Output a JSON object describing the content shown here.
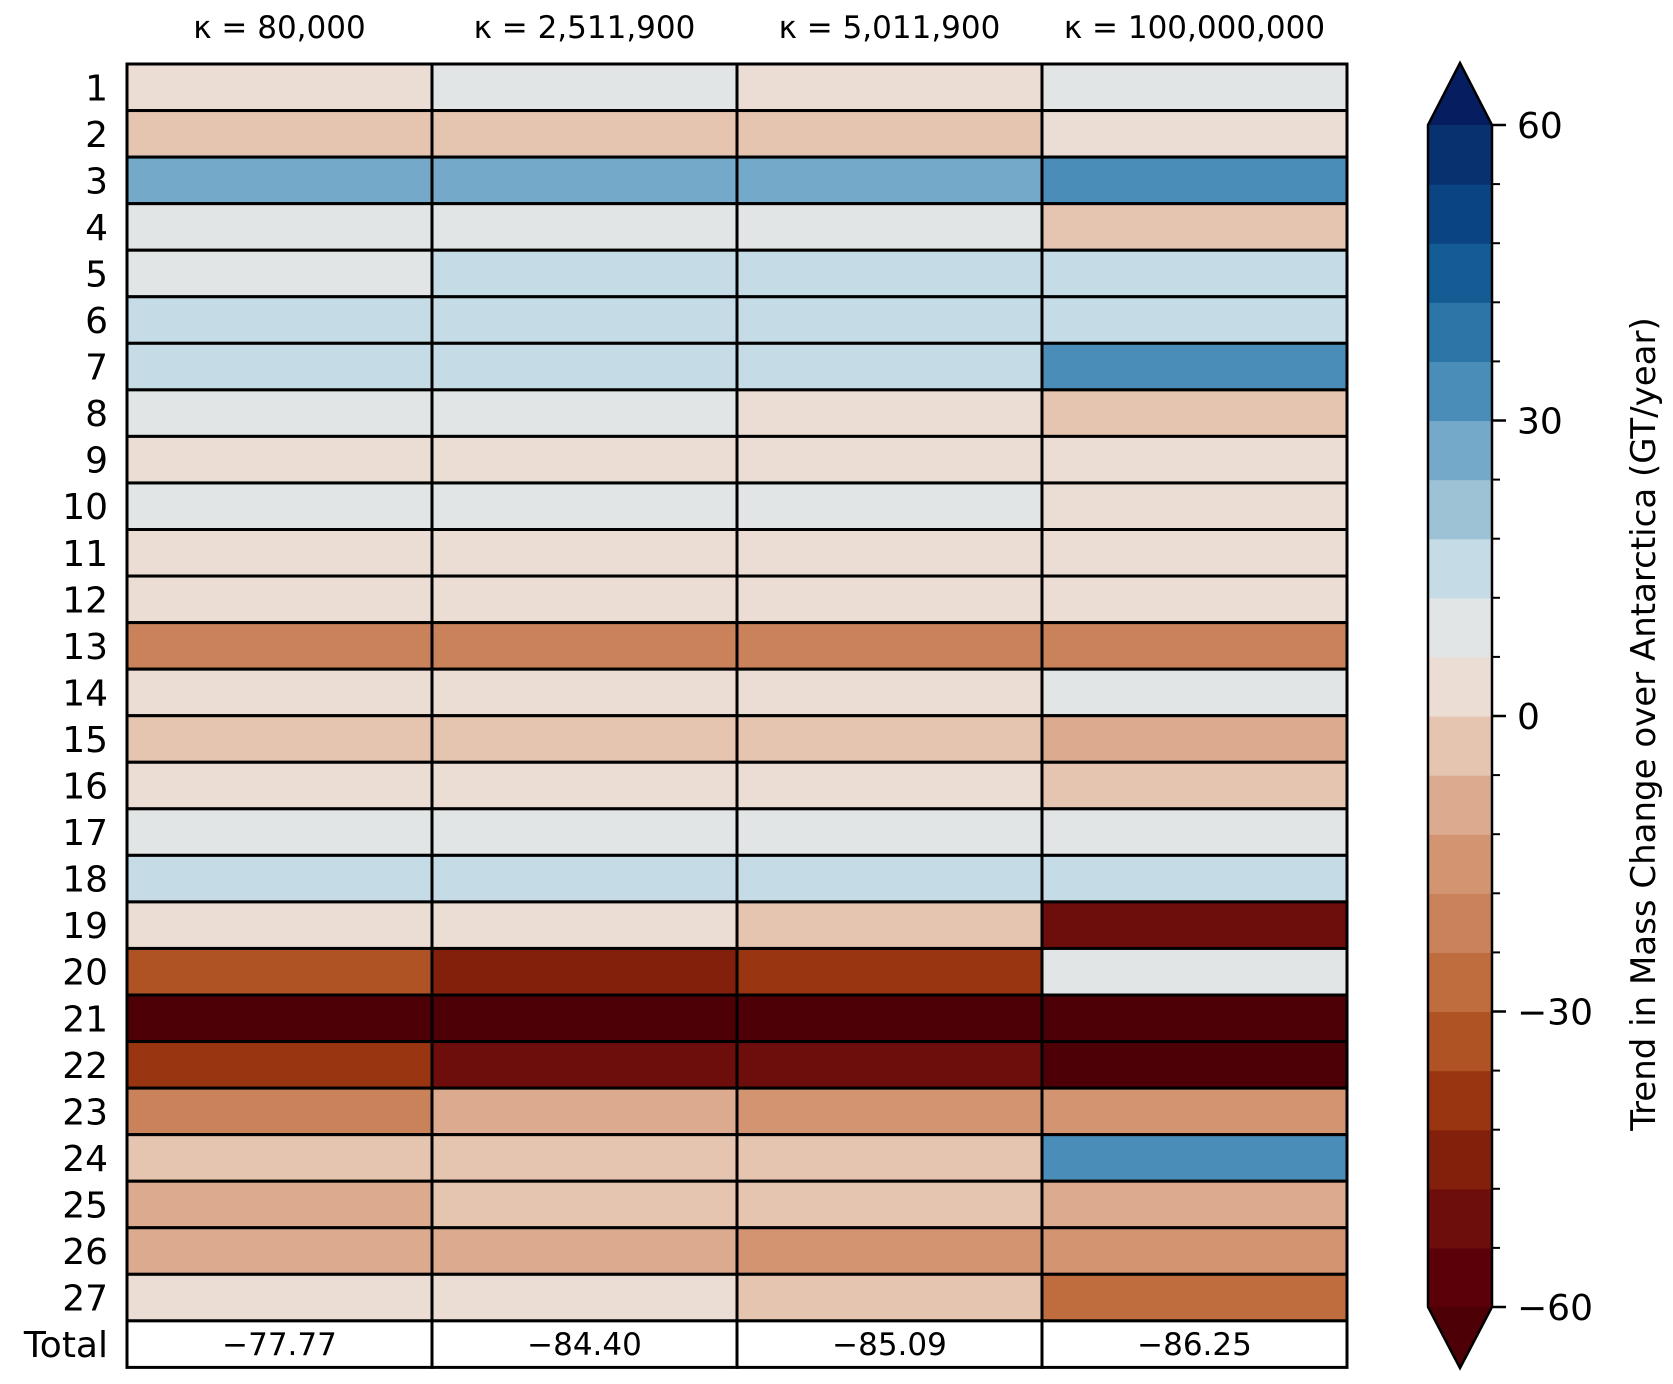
{
  "chart_data": {
    "type": "heatmap",
    "columns": [
      "κ = 80,000",
      "κ = 2,511,900",
      "κ = 5,011,900",
      "κ = 100,000,000"
    ],
    "rows": [
      "1",
      "2",
      "3",
      "4",
      "5",
      "6",
      "7",
      "8",
      "9",
      "10",
      "11",
      "12",
      "13",
      "14",
      "15",
      "16",
      "17",
      "18",
      "19",
      "20",
      "21",
      "22",
      "23",
      "24",
      "25",
      "26",
      "27"
    ],
    "values": [
      [
        0,
        7,
        0,
        7
      ],
      [
        -2,
        -2,
        -2,
        0
      ],
      [
        27,
        27,
        27,
        33
      ],
      [
        7,
        7,
        7,
        -2
      ],
      [
        7,
        12,
        12,
        12
      ],
      [
        12,
        12,
        12,
        12
      ],
      [
        17,
        17,
        17,
        33
      ],
      [
        7,
        7,
        0,
        -2
      ],
      [
        0,
        0,
        0,
        0
      ],
      [
        7,
        7,
        7,
        0
      ],
      [
        0,
        0,
        0,
        0
      ],
      [
        0,
        0,
        0,
        0
      ],
      [
        -20,
        -20,
        -20,
        -20
      ],
      [
        0,
        0,
        0,
        7
      ],
      [
        -2,
        -2,
        -2,
        -7
      ],
      [
        0,
        0,
        0,
        -2
      ],
      [
        7,
        7,
        7,
        7
      ],
      [
        12,
        12,
        12,
        12
      ],
      [
        0,
        0,
        -2,
        -52
      ],
      [
        -32,
        -47,
        -37,
        7
      ],
      [
        -62,
        -62,
        -62,
        -62
      ],
      [
        -42,
        -52,
        -52,
        -62
      ],
      [
        -22,
        -12,
        -15,
        -15
      ],
      [
        -2,
        -2,
        -2,
        33
      ],
      [
        -7,
        -2,
        -2,
        -7
      ],
      [
        -7,
        -12,
        -15,
        -15
      ],
      [
        0,
        0,
        -2,
        -27
      ]
    ],
    "totals_label": "Total",
    "totals": [
      "−77.77",
      "−84.40",
      "−85.09",
      "−86.25"
    ],
    "colorbar": {
      "label": "Trend in Mass Change over Antarctica (GT/year)",
      "ticks": [
        60,
        30,
        0,
        -30,
        -60
      ],
      "tick_labels": [
        "60",
        "30",
        "0",
        "−30",
        "−60"
      ],
      "vmin": -60,
      "vmax": 60,
      "levels": 20,
      "extend": "both",
      "colors": [
        "#5b0009",
        "#6e0e0c",
        "#83200c",
        "#993510",
        "#af5224",
        "#bf6d3e",
        "#c98259",
        "#d39472",
        "#dcaa8e",
        "#e5c4b0",
        "#ecddd4",
        "#e1e5e5",
        "#c5dbe6",
        "#9dc2d6",
        "#74a9c9",
        "#4a8db8",
        "#2b76a6",
        "#145d94",
        "#0b4483",
        "#083170"
      ],
      "under_color": "#4e0007",
      "over_color": "#061e60"
    }
  }
}
